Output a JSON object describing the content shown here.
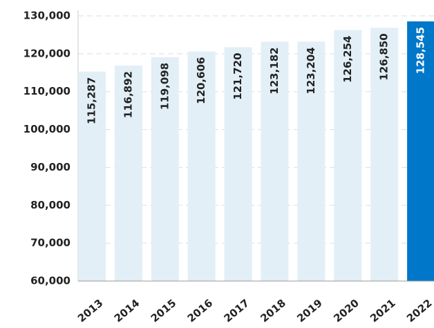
{
  "chart_data": {
    "type": "bar",
    "categories": [
      "2013",
      "2014",
      "2015",
      "2016",
      "2017",
      "2018",
      "2019",
      "2020",
      "2021",
      "2022"
    ],
    "values": [
      115287,
      116892,
      119098,
      120606,
      121720,
      123182,
      123204,
      126254,
      126850,
      128545
    ],
    "value_labels": [
      "115,287",
      "116,892",
      "119,098",
      "120,606",
      "121,720",
      "123,182",
      "123,204",
      "126,254",
      "126,850",
      "128,545"
    ],
    "colors": [
      "#e2eff7",
      "#e2eff7",
      "#e2eff7",
      "#e2eff7",
      "#e2eff7",
      "#e2eff7",
      "#e2eff7",
      "#e2eff7",
      "#e2eff7",
      "#0077c8"
    ],
    "ylim": [
      60000,
      130000
    ],
    "yticks": [
      {
        "value": 60000,
        "label": "60,000"
      },
      {
        "value": 70000,
        "label": "70,000"
      },
      {
        "value": 80000,
        "label": "80,000"
      },
      {
        "value": 90000,
        "label": "90,000"
      },
      {
        "value": 100000,
        "label": "100,000"
      },
      {
        "value": 110000,
        "label": "110,000"
      },
      {
        "value": 120000,
        "label": "120,000"
      },
      {
        "value": 130000,
        "label": "130,000"
      }
    ],
    "grid": true
  }
}
